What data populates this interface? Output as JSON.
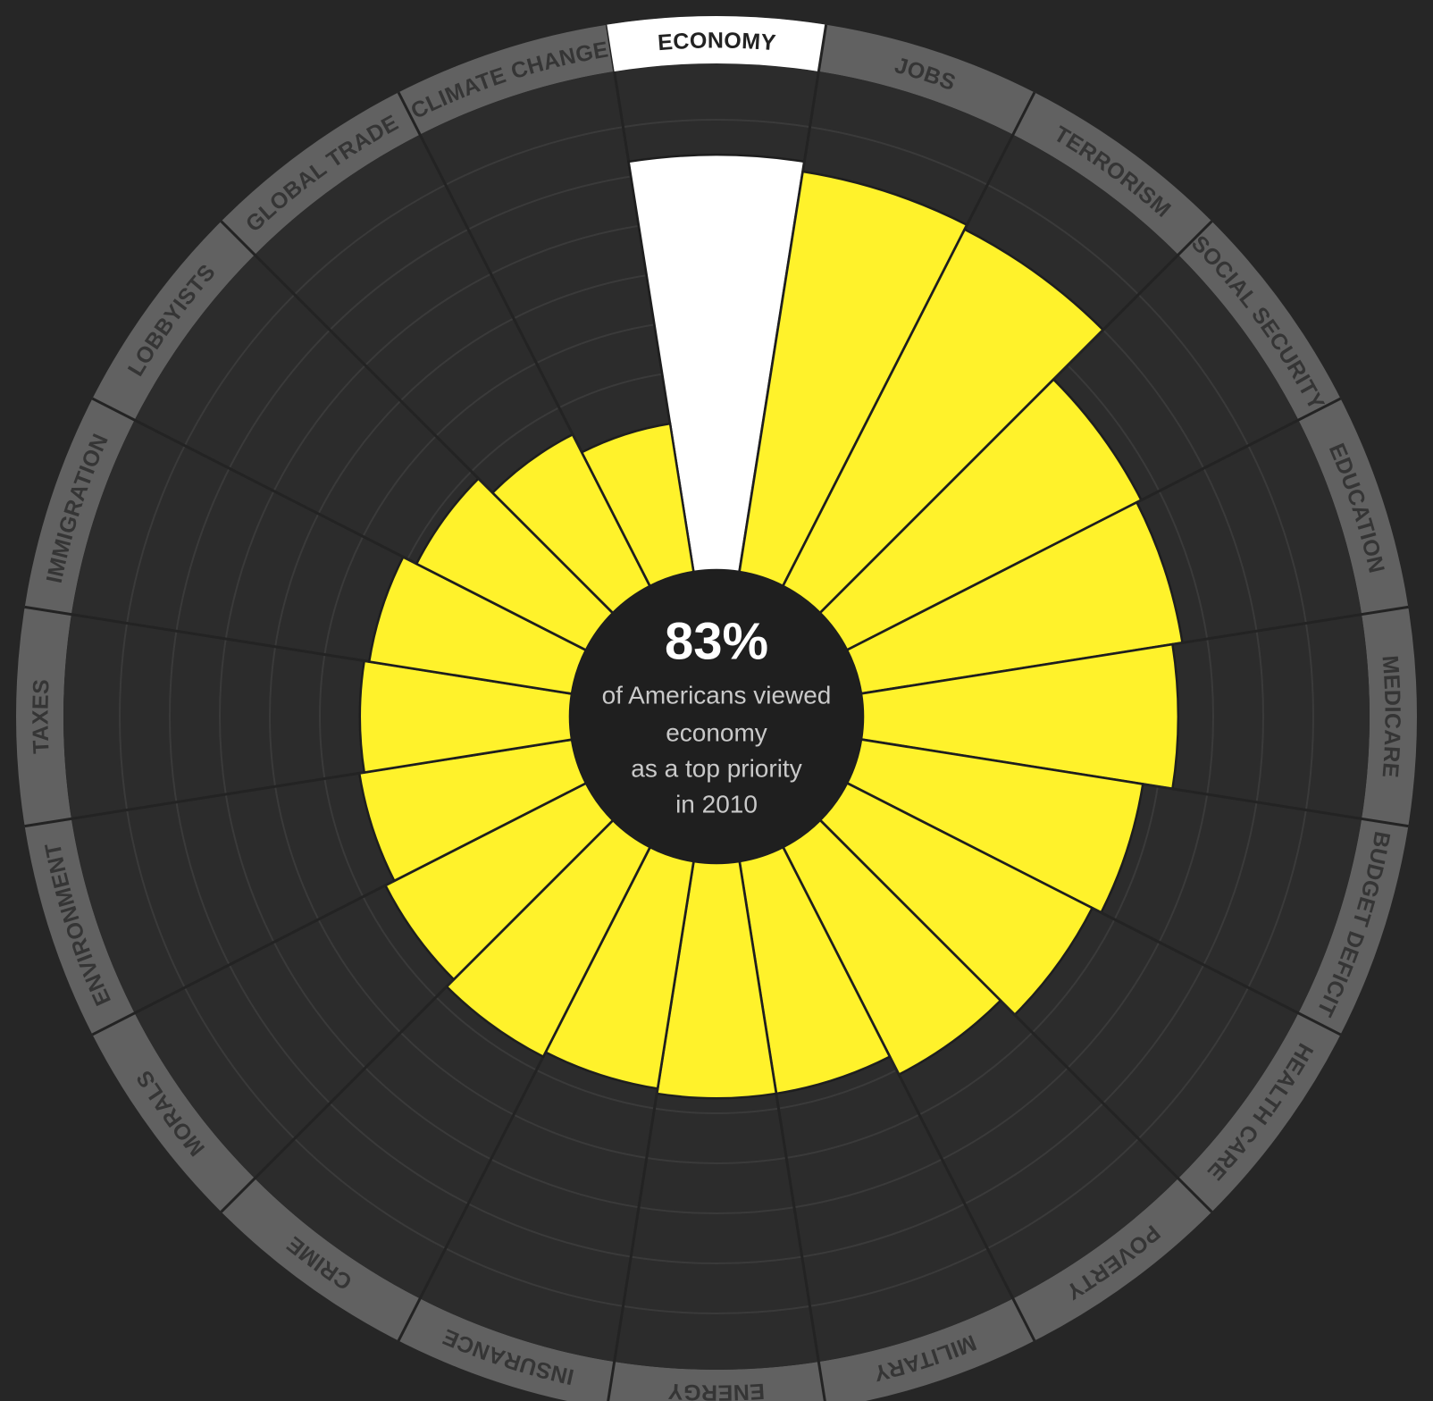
{
  "chart_data": {
    "type": "radial-bar",
    "categories": [
      "ECONOMY",
      "JOBS",
      "TERRORISM",
      "SOCIAL SECURITY",
      "EDUCATION",
      "MEDICARE",
      "BUDGET DEFICIT",
      "HEALTH CARE",
      "POVERTY",
      "MILITARY",
      "ENERGY",
      "INSURANCE",
      "CRIME",
      "MORALS",
      "ENVIRONMENT",
      "TAXES",
      "IMMIGRATION",
      "LOBBYISTS",
      "GLOBAL TRADE",
      "CLIMATE CHANGE"
    ],
    "values": [
      83,
      81,
      80,
      66,
      65,
      63,
      57,
      55,
      51,
      47,
      47,
      46,
      47,
      45,
      43,
      42,
      41,
      38,
      34,
      30
    ],
    "colors": [
      "#ffffff",
      "#fff22b",
      "#fff22b",
      "#fff22b",
      "#fff22b",
      "#fff22b",
      "#fff22b",
      "#fff22b",
      "#fff22b",
      "#fff22b",
      "#fff22b",
      "#fff22b",
      "#fff22b",
      "#fff22b",
      "#fff22b",
      "#fff22b",
      "#fff22b",
      "#fff22b",
      "#fff22b",
      "#fff22b"
    ],
    "rlim": [
      0,
      100
    ],
    "rticks": [
      10,
      20,
      30,
      40,
      50,
      60,
      70,
      80,
      90
    ],
    "grid": true,
    "center_text": [
      "83%",
      "of Americans viewed",
      "economy",
      "as a top priority",
      "in 2010"
    ]
  }
}
